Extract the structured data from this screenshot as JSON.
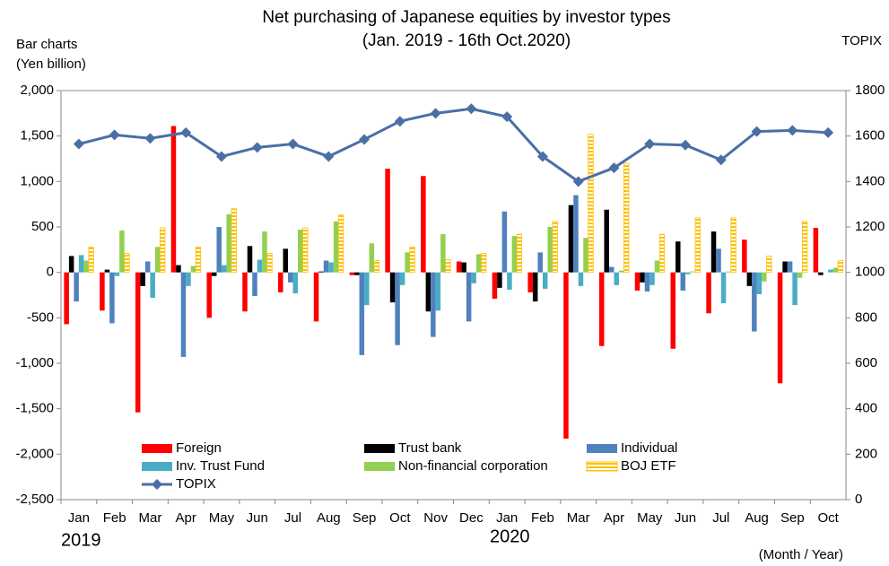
{
  "chart_data": {
    "type": "bar",
    "title": "Net purchasing of Japanese equities by investor types",
    "subtitle": "(Jan. 2019 - 16th Oct.2020)",
    "y_label": [
      "Bar charts",
      "(Yen billion)"
    ],
    "y2_label": "TOPIX",
    "x_label": "(Month / Year)",
    "years": [
      "2019",
      "2020"
    ],
    "categories": [
      "Jan",
      "Feb",
      "Mar",
      "Apr",
      "May",
      "Jun",
      "Jul",
      "Aug",
      "Sep",
      "Oct",
      "Nov",
      "Dec",
      "Jan",
      "Feb",
      "Mar",
      "Apr",
      "May",
      "Jun",
      "Jul",
      "Aug",
      "Sep",
      "Oct"
    ],
    "ylim": [
      -2500,
      2000
    ],
    "yticks": [
      {
        "value": -2500,
        "label": "-2,500"
      },
      {
        "value": -2000,
        "label": "-2,000"
      },
      {
        "value": -1500,
        "label": "-1,500"
      },
      {
        "value": -1000,
        "label": "-1,000"
      },
      -500,
      0,
      500,
      {
        "value": 1000,
        "label": "1,000"
      },
      {
        "value": 1500,
        "label": "1,500"
      },
      {
        "value": 2000,
        "label": "2,000"
      }
    ],
    "y2lim": [
      0,
      1800
    ],
    "y2ticks": [
      0,
      200,
      400,
      600,
      800,
      {
        "value": 1000,
        "label": "1000"
      },
      {
        "value": 1200,
        "label": "1200"
      },
      {
        "value": 1400,
        "label": "1400"
      },
      {
        "value": 1600,
        "label": "1600"
      },
      {
        "value": 1800,
        "label": "1800"
      }
    ],
    "grid": false,
    "series": [
      {
        "name": "Foreign",
        "color": "#ff0000",
        "values": [
          -570,
          -420,
          -1540,
          1610,
          -500,
          -430,
          -220,
          -540,
          -30,
          1140,
          1060,
          120,
          -290,
          -220,
          -1850,
          -810,
          -200,
          -840,
          -450,
          360,
          -1220,
          490
        ]
      },
      {
        "name": "Trust bank",
        "color": "#000000",
        "values": [
          180,
          30,
          -150,
          80,
          -40,
          290,
          260,
          10,
          -30,
          -330,
          -430,
          110,
          -170,
          -320,
          740,
          690,
          -110,
          340,
          450,
          -150,
          120,
          -30
        ]
      },
      {
        "name": "Individual",
        "color": "#4f81bd",
        "values": [
          -320,
          -560,
          120,
          -930,
          500,
          -260,
          -110,
          130,
          -910,
          -800,
          -710,
          -540,
          670,
          220,
          850,
          60,
          -210,
          -200,
          260,
          -650,
          120,
          0
        ]
      },
      {
        "name": "Inv. Trust Fund",
        "color": "#4bacc6",
        "values": [
          190,
          -40,
          -280,
          -150,
          80,
          140,
          -230,
          110,
          -360,
          -140,
          -420,
          -120,
          -190,
          -180,
          -150,
          -140,
          -140,
          -20,
          -340,
          -240,
          -360,
          30
        ]
      },
      {
        "name": "Non-financial corporation",
        "color": "#92d050",
        "values": [
          130,
          460,
          280,
          70,
          640,
          450,
          470,
          560,
          320,
          220,
          420,
          200,
          400,
          500,
          380,
          20,
          130,
          10,
          10,
          -100,
          -60,
          50
        ]
      },
      {
        "name": "BOJ ETF",
        "color": "#ffc000",
        "values": [
          280,
          210,
          490,
          280,
          700,
          210,
          490,
          630,
          130,
          280,
          140,
          210,
          420,
          560,
          1520,
          1200,
          420,
          600,
          600,
          180,
          560,
          130
        ]
      },
      {
        "name": "TOPIX",
        "type": "line",
        "axis": "y2",
        "color": "#4a6fa5",
        "values": [
          1565,
          1605,
          1590,
          1615,
          1510,
          1550,
          1565,
          1510,
          1585,
          1665,
          1700,
          1720,
          1685,
          1510,
          1400,
          1460,
          1565,
          1560,
          1495,
          1620,
          1625,
          1615
        ]
      }
    ]
  }
}
